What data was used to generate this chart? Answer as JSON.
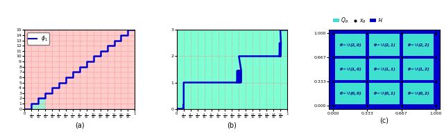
{
  "panel_a": {
    "title": "(a)",
    "legend_label": "$\\phi_1$",
    "ylim": [
      0,
      15
    ],
    "xlim": [
      0,
      1
    ],
    "yticks": [
      0,
      1,
      2,
      3,
      4,
      5,
      6,
      7,
      8,
      9,
      10,
      11,
      12,
      13,
      14,
      15
    ],
    "xticks_labels": [
      "0",
      "$\\frac{1}{16}$",
      "$\\frac{2}{16}$",
      "$\\frac{3}{16}$",
      "$\\frac{4}{16}$",
      "$\\frac{5}{16}$",
      "$\\frac{6}{16}$",
      "$\\frac{7}{16}$",
      "$\\frac{8}{16}$",
      "$\\frac{9}{16}$",
      "$\\frac{10}{16}$",
      "$\\frac{11}{16}$",
      "$\\frac{12}{16}$",
      "$\\frac{13}{16}$",
      "$\\frac{14}{16}$",
      "$\\frac{15}{16}$",
      "1"
    ],
    "xticks_vals": [
      0,
      0.0625,
      0.125,
      0.1875,
      0.25,
      0.3125,
      0.375,
      0.4375,
      0.5,
      0.5625,
      0.625,
      0.6875,
      0.75,
      0.8125,
      0.875,
      0.9375,
      1.0
    ],
    "N": 16,
    "cyan_color": "#7FFFD4",
    "fill_alpha": 0.7,
    "line_color": "#0000CC",
    "line_width": 1.8,
    "grid_color": "#FF7777",
    "bg_color": "#FFCCCC",
    "fill_steps": 3
  },
  "panel_b": {
    "title": "(b)",
    "ylim": [
      0,
      3
    ],
    "xlim": [
      0,
      1
    ],
    "yticks": [
      0,
      1,
      2,
      3
    ],
    "xticks_labels": [
      "0",
      "$\\frac{1}{16}$",
      "$\\frac{2}{16}$",
      "$\\frac{3}{16}$",
      "$\\frac{4}{16}$",
      "$\\frac{5}{16}$",
      "$\\frac{6}{16}$",
      "$\\frac{7}{16}$",
      "$\\frac{8}{16}$",
      "$\\frac{9}{16}$",
      "$\\frac{10}{16}$",
      "$\\frac{11}{16}$",
      "$\\frac{12}{16}$",
      "$\\frac{13}{16}$",
      "$\\frac{14}{16}$",
      "$\\frac{15}{16}$",
      "1"
    ],
    "xticks_vals": [
      0,
      0.0625,
      0.125,
      0.1875,
      0.25,
      0.3125,
      0.375,
      0.4375,
      0.5,
      0.5625,
      0.625,
      0.6875,
      0.75,
      0.8125,
      0.875,
      0.9375,
      1.0
    ],
    "N": 16,
    "cyan_color": "#7FFFD4",
    "line_color": "#0000CC",
    "line_width": 1.8,
    "grid_color": "#FF7777",
    "bg_color": "#7FFFD4",
    "jump1": 0.0625,
    "jump2": 0.5625,
    "jump3": 0.9375
  },
  "panel_c": {
    "title": "(c)",
    "xlim": [
      0,
      1
    ],
    "ylim": [
      0,
      1
    ],
    "xticks": [
      0.0,
      0.333,
      0.667,
      1.0
    ],
    "yticks": [
      0.0,
      0.333,
      0.667,
      1.0
    ],
    "xtick_labels": [
      "0.000",
      "0.333",
      "0.667",
      "1.000"
    ],
    "ytick_labels": [
      "0.000",
      "0.333",
      "0.667",
      "1.000"
    ],
    "grid_n": 3,
    "cyan_color": "#40E0D0",
    "blue_color": "#0000CC",
    "text_color": "#000080",
    "dot_color": "black",
    "patch_labels": [
      [
        "$\\boldsymbol{\\theta}\\!=$\\!(0,0)",
        "$\\boldsymbol{\\theta}\\!=$\\!(0,1)",
        "$\\boldsymbol{\\theta}\\!=$\\!(0,2)"
      ],
      [
        "$\\boldsymbol{\\theta}\\!=$\\!(1,0)",
        "$\\boldsymbol{\\theta}\\!=$\\!(1,1)",
        "$\\boldsymbol{\\theta}\\!=$\\!(1,2)"
      ],
      [
        "$\\boldsymbol{\\theta}\\!=$\\!(2,0)",
        "$\\boldsymbol{\\theta}\\!=$\\!(2,1)",
        "$\\boldsymbol{\\theta}\\!=$\\!(2,2)"
      ]
    ]
  }
}
